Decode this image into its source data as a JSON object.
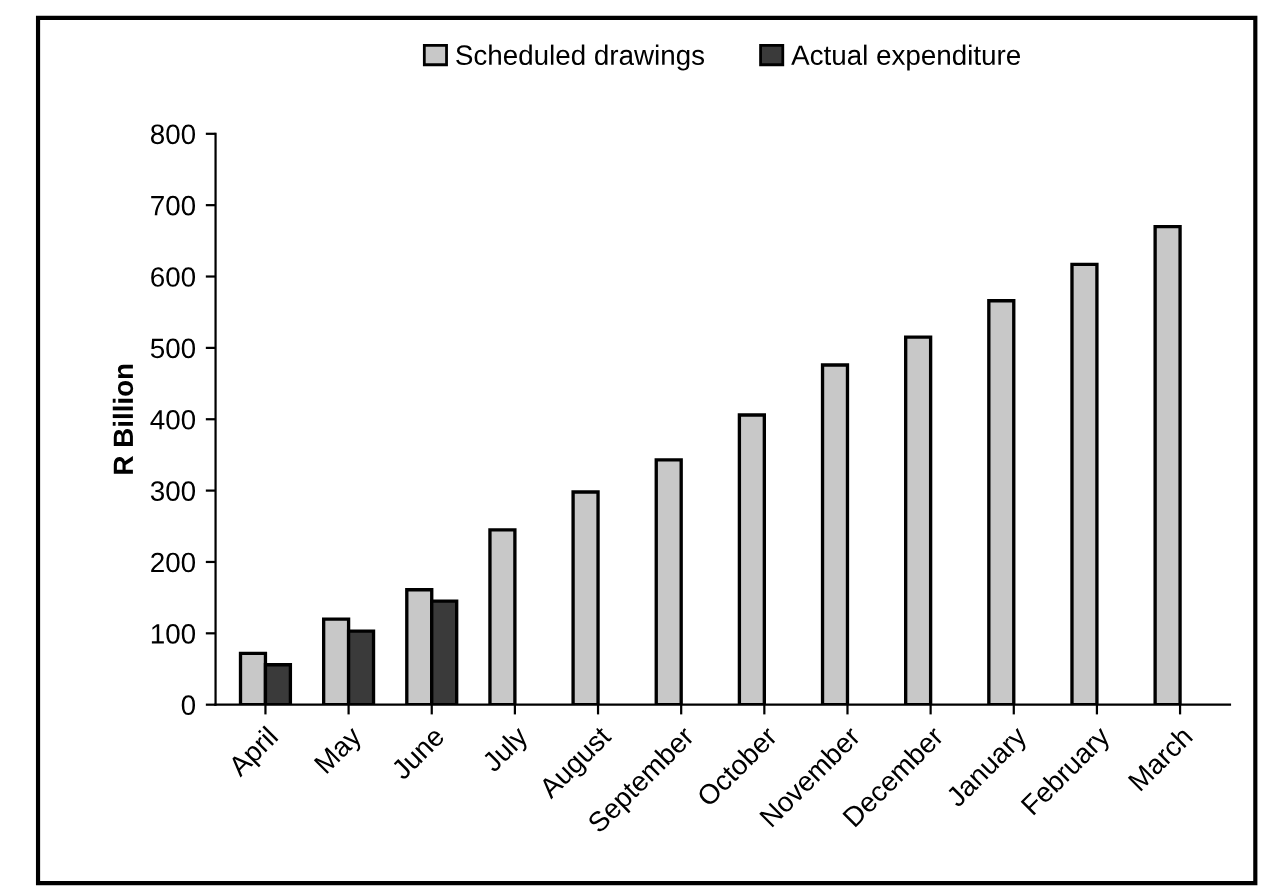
{
  "chart_data": {
    "type": "bar",
    "ylabel": "R Billion",
    "categories": [
      "April",
      "May",
      "June",
      "July",
      "August",
      "September",
      "October",
      "November",
      "December",
      "January",
      "February",
      "March"
    ],
    "series": [
      {
        "name": "Scheduled drawings",
        "color": "#c8c8c8",
        "values": [
          72,
          120,
          161,
          245,
          298,
          343,
          406,
          476,
          515,
          566,
          617,
          670
        ]
      },
      {
        "name": "Actual expenditure",
        "color": "#3a3a3a",
        "values": [
          56,
          103,
          145,
          null,
          null,
          null,
          null,
          null,
          null,
          null,
          null,
          null
        ]
      }
    ],
    "ylim": [
      0,
      800
    ],
    "yticks": [
      0,
      100,
      200,
      300,
      400,
      500,
      600,
      700,
      800
    ],
    "grid": false,
    "legend": "top"
  }
}
